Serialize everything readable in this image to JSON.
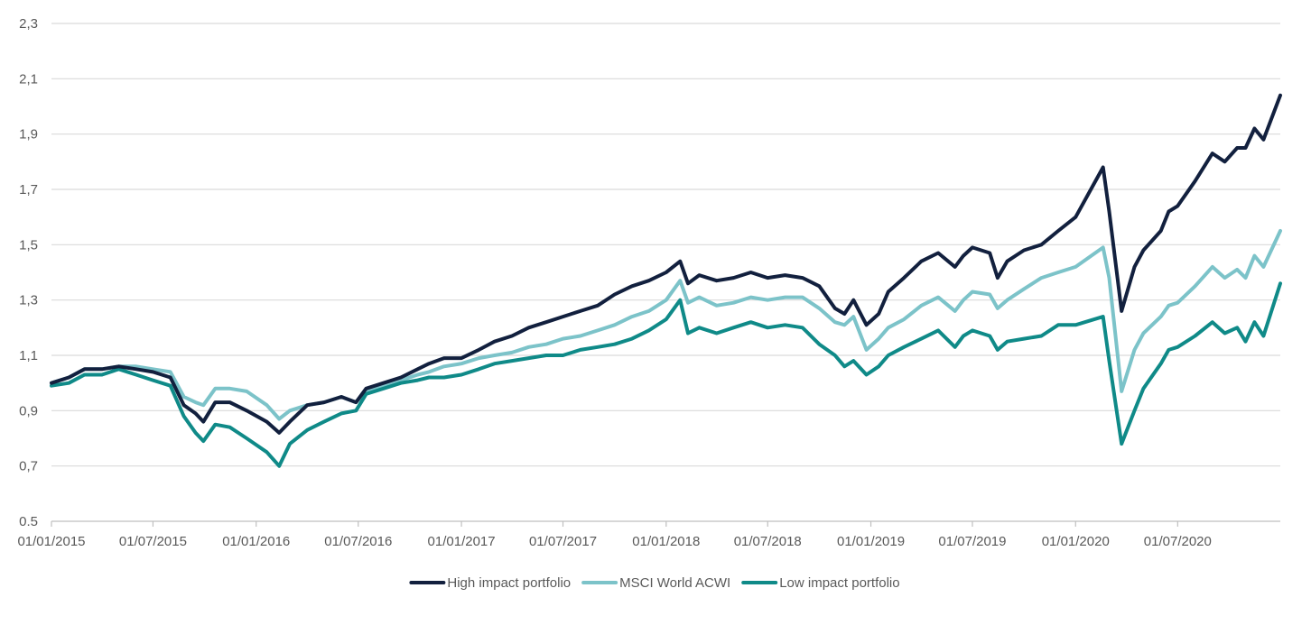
{
  "chart_data": {
    "type": "line",
    "title": "",
    "xlabel": "",
    "ylabel": "",
    "ylim": [
      0.5,
      2.3
    ],
    "xlim": [
      "2015-01-01",
      "2020-12-31"
    ],
    "grid": true,
    "legend_position": "bottom",
    "y_ticks": [
      0.5,
      0.7,
      0.9,
      1.1,
      1.3,
      1.5,
      1.7,
      1.9,
      2.1,
      2.3
    ],
    "y_tick_labels": [
      "0.5",
      "0,7",
      "0,9",
      "1,1",
      "1,3",
      "1,5",
      "1,7",
      "1,9",
      "2,1",
      "2,3"
    ],
    "x_ticks": [
      "2015-01-01",
      "2015-07-01",
      "2016-01-01",
      "2016-07-01",
      "2017-01-01",
      "2017-07-01",
      "2018-01-01",
      "2018-07-01",
      "2019-01-01",
      "2019-07-01",
      "2020-01-01",
      "2020-07-01"
    ],
    "x_tick_labels": [
      "01/01/2015",
      "01/07/2015",
      "01/01/2016",
      "01/07/2016",
      "01/01/2017",
      "01/07/2017",
      "01/01/2018",
      "01/07/2018",
      "01/01/2019",
      "01/07/2019",
      "01/01/2020",
      "01/07/2020"
    ],
    "x": [
      "2015-01-01",
      "2015-02-01",
      "2015-03-01",
      "2015-04-01",
      "2015-05-01",
      "2015-06-01",
      "2015-07-01",
      "2015-08-01",
      "2015-08-25",
      "2015-09-15",
      "2015-09-29",
      "2015-10-20",
      "2015-11-15",
      "2015-12-15",
      "2016-01-20",
      "2016-02-11",
      "2016-03-01",
      "2016-04-01",
      "2016-05-01",
      "2016-06-01",
      "2016-06-27",
      "2016-07-15",
      "2016-08-15",
      "2016-09-15",
      "2016-10-15",
      "2016-11-04",
      "2016-12-01",
      "2017-01-01",
      "2017-02-01",
      "2017-03-01",
      "2017-04-01",
      "2017-05-01",
      "2017-06-01",
      "2017-07-01",
      "2017-08-01",
      "2017-09-01",
      "2017-10-01",
      "2017-11-01",
      "2017-12-01",
      "2018-01-01",
      "2018-01-26",
      "2018-02-09",
      "2018-03-01",
      "2018-04-01",
      "2018-05-01",
      "2018-06-01",
      "2018-07-01",
      "2018-08-01",
      "2018-09-01",
      "2018-10-01",
      "2018-10-29",
      "2018-11-15",
      "2018-12-01",
      "2018-12-24",
      "2019-01-15",
      "2019-02-01",
      "2019-03-01",
      "2019-04-01",
      "2019-05-01",
      "2019-05-31",
      "2019-06-15",
      "2019-07-01",
      "2019-08-01",
      "2019-08-15",
      "2019-09-01",
      "2019-10-01",
      "2019-11-01",
      "2019-12-01",
      "2020-01-01",
      "2020-02-19",
      "2020-03-01",
      "2020-03-23",
      "2020-04-15",
      "2020-05-01",
      "2020-06-01",
      "2020-06-15",
      "2020-07-01",
      "2020-08-01",
      "2020-09-01",
      "2020-09-23",
      "2020-10-15",
      "2020-10-30",
      "2020-11-15",
      "2020-12-01",
      "2020-12-31"
    ],
    "series": [
      {
        "name": "High impact portfolio",
        "color": "#12203e",
        "values": [
          1.0,
          1.02,
          1.05,
          1.05,
          1.06,
          1.05,
          1.04,
          1.02,
          0.92,
          0.89,
          0.86,
          0.93,
          0.93,
          0.9,
          0.86,
          0.82,
          0.86,
          0.92,
          0.93,
          0.95,
          0.93,
          0.98,
          1.0,
          1.02,
          1.05,
          1.07,
          1.09,
          1.09,
          1.12,
          1.15,
          1.17,
          1.2,
          1.22,
          1.24,
          1.26,
          1.28,
          1.32,
          1.35,
          1.37,
          1.4,
          1.44,
          1.36,
          1.39,
          1.37,
          1.38,
          1.4,
          1.38,
          1.39,
          1.38,
          1.35,
          1.27,
          1.25,
          1.3,
          1.21,
          1.25,
          1.33,
          1.38,
          1.44,
          1.47,
          1.42,
          1.46,
          1.49,
          1.47,
          1.38,
          1.44,
          1.48,
          1.5,
          1.55,
          1.6,
          1.78,
          1.62,
          1.26,
          1.42,
          1.48,
          1.55,
          1.62,
          1.64,
          1.73,
          1.83,
          1.8,
          1.85,
          1.85,
          1.92,
          1.88,
          2.04
        ]
      },
      {
        "name": "MSCI World ACWI",
        "color": "#7cc3c9",
        "values": [
          1.0,
          1.02,
          1.05,
          1.05,
          1.06,
          1.06,
          1.05,
          1.04,
          0.95,
          0.93,
          0.92,
          0.98,
          0.98,
          0.97,
          0.92,
          0.87,
          0.9,
          0.92,
          0.93,
          0.95,
          0.93,
          0.97,
          0.99,
          1.01,
          1.03,
          1.04,
          1.06,
          1.07,
          1.09,
          1.1,
          1.11,
          1.13,
          1.14,
          1.16,
          1.17,
          1.19,
          1.21,
          1.24,
          1.26,
          1.3,
          1.37,
          1.29,
          1.31,
          1.28,
          1.29,
          1.31,
          1.3,
          1.31,
          1.31,
          1.27,
          1.22,
          1.21,
          1.24,
          1.12,
          1.16,
          1.2,
          1.23,
          1.28,
          1.31,
          1.26,
          1.3,
          1.33,
          1.32,
          1.27,
          1.3,
          1.34,
          1.38,
          1.4,
          1.42,
          1.49,
          1.38,
          0.97,
          1.12,
          1.18,
          1.24,
          1.28,
          1.29,
          1.35,
          1.42,
          1.38,
          1.41,
          1.38,
          1.46,
          1.42,
          1.55
        ]
      },
      {
        "name": "Low impact portfolio",
        "color": "#0f8a88",
        "values": [
          0.99,
          1.0,
          1.03,
          1.03,
          1.05,
          1.03,
          1.01,
          0.99,
          0.88,
          0.82,
          0.79,
          0.85,
          0.84,
          0.8,
          0.75,
          0.7,
          0.78,
          0.83,
          0.86,
          0.89,
          0.9,
          0.96,
          0.98,
          1.0,
          1.01,
          1.02,
          1.02,
          1.03,
          1.05,
          1.07,
          1.08,
          1.09,
          1.1,
          1.1,
          1.12,
          1.13,
          1.14,
          1.16,
          1.19,
          1.23,
          1.3,
          1.18,
          1.2,
          1.18,
          1.2,
          1.22,
          1.2,
          1.21,
          1.2,
          1.14,
          1.1,
          1.06,
          1.08,
          1.03,
          1.06,
          1.1,
          1.13,
          1.16,
          1.19,
          1.13,
          1.17,
          1.19,
          1.17,
          1.12,
          1.15,
          1.16,
          1.17,
          1.21,
          1.21,
          1.24,
          1.08,
          0.78,
          0.9,
          0.98,
          1.07,
          1.12,
          1.13,
          1.17,
          1.22,
          1.18,
          1.2,
          1.15,
          1.22,
          1.17,
          1.36
        ]
      }
    ]
  }
}
